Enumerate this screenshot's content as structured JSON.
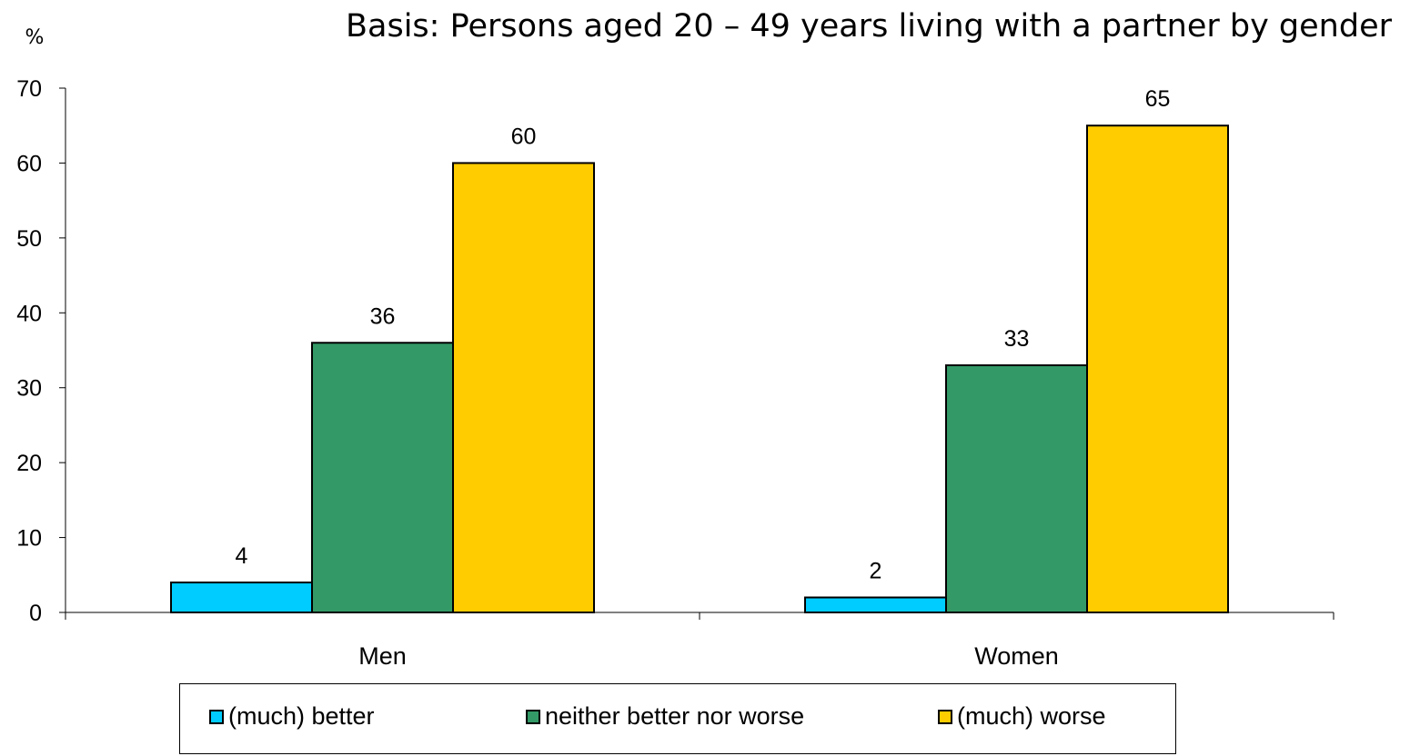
{
  "chart_data": {
    "type": "bar",
    "title": "Basis: Persons aged 20 – 49 years living with a partner by gender",
    "ylabel": "%",
    "categories": [
      "Men",
      "Women"
    ],
    "ylim": [
      0,
      70
    ],
    "yticks": [
      0,
      10,
      20,
      30,
      40,
      50,
      60,
      70
    ],
    "grid": false,
    "legend_position": "bottom",
    "series": [
      {
        "name": "(much) better",
        "color": "#00CCFF",
        "values": [
          4,
          2
        ]
      },
      {
        "name": "neither better nor worse",
        "color": "#339966",
        "values": [
          36,
          33
        ]
      },
      {
        "name": "(much) worse",
        "color": "#FFCC00",
        "values": [
          60,
          65
        ]
      }
    ]
  }
}
